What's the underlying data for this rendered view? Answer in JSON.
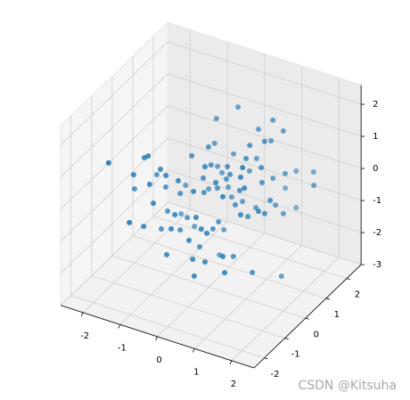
{
  "chart_data": {
    "type": "scatter3d",
    "xlim": [
      -2.6,
      2.6
    ],
    "ylim": [
      -2.5,
      2.7
    ],
    "zlim": [
      -3,
      2.6
    ],
    "xticks": [
      -2,
      -1,
      0,
      1,
      2
    ],
    "yticks": [
      -2,
      -1,
      0,
      1,
      2
    ],
    "zticks": [
      -3,
      -2,
      -1,
      0,
      1,
      2
    ],
    "grid": true,
    "series": [
      {
        "color": "#1f77b4",
        "x": [
          0.23,
          -0.35,
          1.17,
          1.45,
          0.78,
          1.5,
          1.12,
          1.1,
          -0.4,
          -0.01,
          -1.08,
          -1.18,
          -1.59,
          -0.46,
          0.45,
          0.06,
          -0.32,
          0.5,
          0.11,
          1.46,
          1.0,
          0.73,
          1.41,
          0.54,
          1.41,
          0.57,
          -0.2,
          -0.15,
          0.74,
          -0.56,
          0.23,
          -0.03,
          0.83,
          1.51,
          0.06,
          1.43,
          1.5,
          1.24,
          1.71,
          2.27,
          0.95,
          1.17,
          -0.75,
          -1.4,
          -0.6,
          -1.47,
          -2.0,
          -1.04,
          -1.16,
          -0.27,
          -0.77,
          -1.18,
          0.14,
          -0.13,
          0.93,
          0.71,
          0.35,
          1.41,
          1.05,
          0.71,
          1.89,
          1.5,
          1.24,
          1.45,
          1.24,
          1.65,
          -0.94,
          -1.11,
          -0.36,
          -1.3,
          -0.58,
          0.21,
          0.26,
          -0.94,
          0.35,
          0.11,
          -0.15,
          -0.46,
          -0.77,
          0.5,
          -1.2,
          -1.03,
          -1.28,
          0.02,
          -0.25,
          0.12,
          0.45,
          0.66,
          -0.27,
          0.93,
          -0.58,
          1.17,
          1.4,
          0.98,
          0.16,
          0.47
        ],
        "y": [
          1,
          1,
          1,
          1,
          1,
          0,
          1,
          0,
          1,
          0,
          -1,
          -1,
          -2,
          0,
          -1,
          0,
          1,
          0,
          1,
          -1,
          0,
          1,
          0,
          1,
          -1,
          0,
          1,
          0,
          -1,
          1,
          0,
          1,
          0,
          -1,
          1,
          0,
          1,
          2,
          2,
          1,
          2,
          1,
          -1,
          0,
          -1,
          -1,
          0,
          -1,
          0,
          -1,
          0,
          1,
          -1,
          0,
          -1,
          0,
          1,
          -1,
          0,
          1,
          -1,
          0,
          1,
          1,
          2,
          0,
          -1,
          0,
          -1,
          1,
          0,
          -1,
          0,
          1,
          -1,
          0,
          1,
          -1,
          0,
          -1,
          -1,
          -2,
          0,
          -1,
          0,
          -1,
          -1,
          0,
          1,
          -1,
          -1,
          0,
          1,
          -1,
          -1,
          0
        ],
        "z": [
          2.08,
          1.5,
          2.02,
          1.79,
          1.59,
          2.1,
          1.36,
          1.83,
          0.71,
          1.36,
          1.3,
          1.21,
          1.51,
          0.92,
          1.54,
          0.83,
          0.02,
          0.94,
          0.57,
          1.89,
          1.38,
          0.66,
          1.25,
          0.2,
          1.57,
          0.72,
          -0.13,
          0.34,
          1.15,
          -0.77,
          0.17,
          -0.52,
          0.32,
          1.27,
          -0.79,
          0.79,
          0.48,
          -0.16,
          -0.01,
          0.4,
          -0.8,
          0.21,
          1.01,
          -0.02,
          0.87,
          0.57,
          -0.69,
          0.43,
          -0.32,
          0.83,
          -0.37,
          -0.89,
          0.65,
          -0.1,
          0.78,
          -0.17,
          -0.82,
          0.4,
          -0.41,
          -0.88,
          0.69,
          -0.15,
          -0.6,
          -0.79,
          -1.3,
          0.32,
          -0.12,
          -1.05,
          -0.26,
          -1.83,
          -1.05,
          -0.13,
          -0.87,
          -2.08,
          -0.44,
          -1.15,
          -1.89,
          -0.74,
          -1.51,
          -0.52,
          -0.94,
          -0.14,
          -1.67,
          -0.92,
          -1.84,
          -1.47,
          -1.43,
          -1.8,
          -2.72,
          -1.08,
          -1.59,
          -2.11,
          -2.76,
          -1.57,
          -1.98,
          0.54
        ]
      }
    ]
  },
  "watermark": "CSDN @Kitsuha"
}
